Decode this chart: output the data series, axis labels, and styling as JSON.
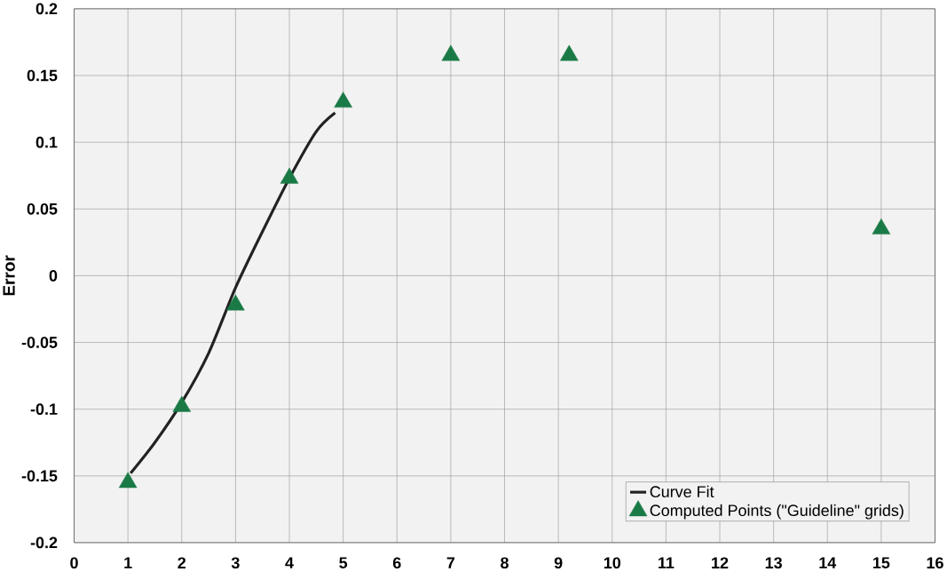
{
  "chart_data": {
    "type": "scatter",
    "ylabel": "Error",
    "series": [
      {
        "name": "Curve Fit",
        "type": "line",
        "color": "#222222",
        "marker": "none",
        "x": [
          1.05,
          1.5,
          2,
          2.5,
          3,
          3.5,
          4,
          4.5,
          4.85
        ],
        "values": [
          -0.148,
          -0.125,
          -0.095,
          -0.058,
          -0.009,
          0.033,
          0.073,
          0.108,
          0.122
        ]
      },
      {
        "name": "Computed Points (\"Guideline\" grids)",
        "color": "#1a7a46",
        "marker": "triangle",
        "x": [
          1,
          2,
          3,
          4,
          5,
          7,
          9.2,
          15
        ],
        "values": [
          -0.155,
          -0.098,
          -0.022,
          0.073,
          0.13,
          0.165,
          0.165,
          0.035
        ]
      }
    ],
    "xlim": [
      0,
      16
    ],
    "xticks": [
      0,
      1,
      2,
      3,
      4,
      5,
      6,
      7,
      8,
      9,
      10,
      11,
      12,
      13,
      14,
      15,
      16
    ],
    "ylim": [
      -0.2,
      0.2
    ],
    "yticks": [
      -0.2,
      -0.15,
      -0.1,
      -0.05,
      0,
      0.05,
      0.1,
      0.15,
      0.2
    ],
    "grid": true,
    "legend": "bottom right"
  }
}
